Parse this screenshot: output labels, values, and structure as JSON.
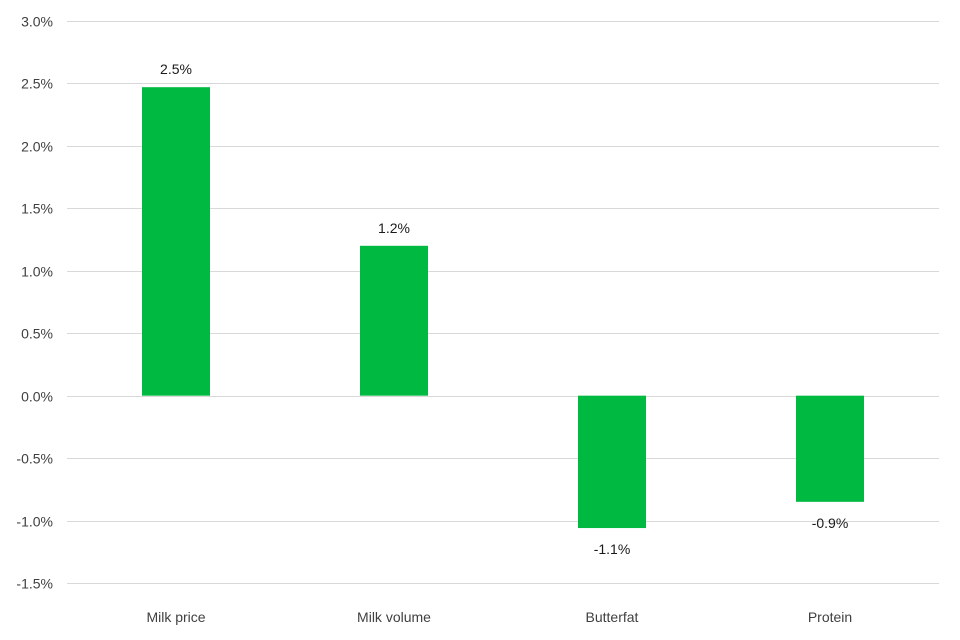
{
  "chart_data": {
    "type": "bar",
    "title": "",
    "xlabel": "",
    "ylabel": "",
    "categories": [
      "Milk price",
      "Milk volume",
      "Butterfat",
      "Protein"
    ],
    "values": [
      2.5,
      1.2,
      -1.1,
      -0.9
    ],
    "plotted_values": [
      2.47,
      1.2,
      -1.06,
      -0.85
    ],
    "data_labels": [
      "2.5%",
      "1.2%",
      "-1.1%",
      "-0.9%"
    ],
    "ylim": [
      -1.5,
      3.0
    ],
    "y_ticks": [
      3.0,
      2.5,
      2.0,
      1.5,
      1.0,
      0.5,
      0.0,
      -0.5,
      -1.0,
      -1.5
    ],
    "y_tick_labels": [
      "3.0%",
      "2.5%",
      "2.0%",
      "1.5%",
      "1.0%",
      "0.5%",
      "0.0%",
      "-0.5%",
      "-1.0%",
      "-1.5%"
    ],
    "grid": true,
    "legend": "none",
    "colors": {
      "bar": "#00b940",
      "grid": "#d9d9d9",
      "axis_text": "#404040",
      "label_text": "#1a1a1a"
    }
  }
}
